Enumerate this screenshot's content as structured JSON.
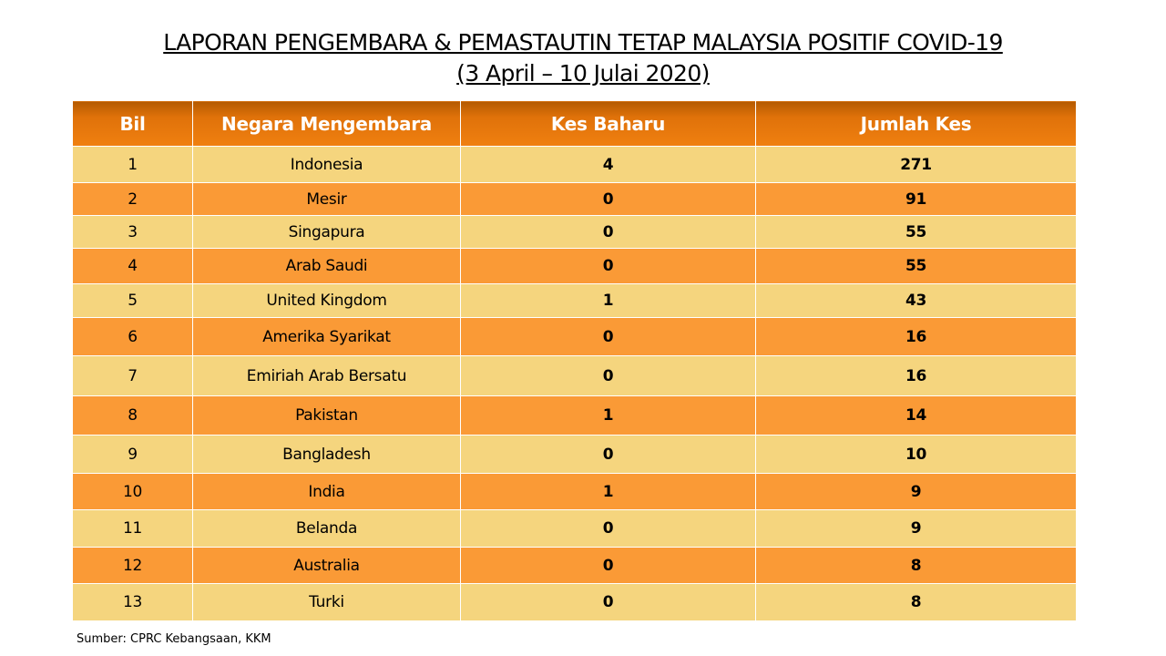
{
  "title_line1": "LAPORAN PENGEMBARA & PEMASTAUTIN TETAP MALAYSIA POSITIF COVID-19",
  "title_line2": "(3 April – 10 Julai 2020)",
  "colors": {
    "header": "#f08010",
    "row_light": "#f5d57e",
    "row_dark": "#fa9a36"
  },
  "table": {
    "headers": [
      "Bil",
      "Negara Mengembara",
      "Kes Baharu",
      "Jumlah Kes"
    ],
    "rows": [
      [
        "1",
        "Indonesia",
        "4",
        "271"
      ],
      [
        "2",
        "Mesir",
        "0",
        "91"
      ],
      [
        "3",
        "Singapura",
        "0",
        "55"
      ],
      [
        "4",
        "Arab Saudi",
        "0",
        "55"
      ],
      [
        "5",
        "United Kingdom",
        "1",
        "43"
      ],
      [
        "6",
        "Amerika Syarikat",
        "0",
        "16"
      ],
      [
        "7",
        "Emiriah Arab Bersatu",
        "0",
        "16"
      ],
      [
        "8",
        "Pakistan",
        "1",
        "14"
      ],
      [
        "9",
        "Bangladesh",
        "0",
        "10"
      ],
      [
        "10",
        "India",
        "1",
        "9"
      ],
      [
        "11",
        "Belanda",
        "0",
        "9"
      ],
      [
        "12",
        "Australia",
        "0",
        "8"
      ],
      [
        "13",
        "Turki",
        "0",
        "8"
      ]
    ]
  },
  "source": "Sumber:  CPRC Kebangsaan, KKM"
}
